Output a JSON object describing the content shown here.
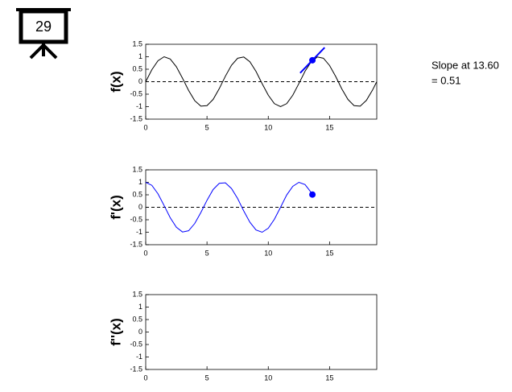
{
  "badge": "29",
  "annotation": [
    "Slope at 13.60",
    "= 0.51"
  ],
  "chart_data": [
    {
      "type": "line",
      "ylabel": "f(x)",
      "xlim": [
        0,
        18.85
      ],
      "ylim": [
        -1.5,
        1.5
      ],
      "xticks": [
        0,
        5,
        10,
        15
      ],
      "yticks": [
        -1.5,
        -1,
        -0.5,
        0,
        0.5,
        1,
        1.5
      ],
      "hline": 0,
      "series": [
        {
          "color": "#000000",
          "x": [
            0,
            0.5,
            1,
            1.5,
            2,
            2.5,
            3,
            3.5,
            4,
            4.5,
            5,
            5.5,
            6,
            6.5,
            7,
            7.5,
            8,
            8.5,
            9,
            9.5,
            10,
            10.5,
            11,
            11.5,
            12,
            12.5,
            13,
            13.5,
            14,
            14.5,
            15,
            15.5,
            16,
            16.5,
            17,
            17.5,
            18,
            18.5,
            18.85
          ],
          "values": [
            0,
            0.48,
            0.84,
            1.0,
            0.91,
            0.6,
            0.14,
            -0.35,
            -0.76,
            -0.98,
            -0.96,
            -0.71,
            -0.28,
            0.22,
            0.66,
            0.94,
            0.99,
            0.8,
            0.41,
            -0.08,
            -0.54,
            -0.88,
            -1.0,
            -0.88,
            -0.54,
            -0.07,
            0.42,
            0.8,
            0.99,
            0.94,
            0.65,
            0.21,
            -0.29,
            -0.71,
            -0.96,
            -0.98,
            -0.75,
            -0.34,
            0
          ]
        },
        {
          "color": "#0000ff",
          "x": [
            12.6,
            14.6
          ],
          "values": [
            0.35,
            1.37
          ]
        },
        {
          "color": "#0000ff",
          "marker": true,
          "x": [
            13.6
          ],
          "values": [
            0.86
          ]
        }
      ]
    },
    {
      "type": "line",
      "ylabel": "f'(x)",
      "xlim": [
        0,
        18.85
      ],
      "ylim": [
        -1.5,
        1.5
      ],
      "xticks": [
        0,
        5,
        10,
        15
      ],
      "yticks": [
        -1.5,
        -1,
        -0.5,
        0,
        0.5,
        1,
        1.5
      ],
      "hline": 0,
      "series": [
        {
          "color": "#0000ff",
          "x": [
            0,
            0.5,
            1,
            1.5,
            2,
            2.5,
            3,
            3.5,
            4,
            4.5,
            5,
            5.5,
            6,
            6.5,
            7,
            7.5,
            8,
            8.5,
            9,
            9.5,
            10,
            10.5,
            11,
            11.5,
            12,
            12.5,
            13,
            13.5,
            13.6
          ],
          "values": [
            1,
            0.88,
            0.54,
            0.07,
            -0.42,
            -0.8,
            -0.99,
            -0.94,
            -0.65,
            -0.21,
            0.28,
            0.71,
            0.96,
            0.98,
            0.75,
            0.35,
            -0.15,
            -0.6,
            -0.91,
            -1.0,
            -0.84,
            -0.48,
            0.0,
            0.49,
            0.84,
            1.0,
            0.91,
            0.59,
            0.51
          ]
        },
        {
          "color": "#0000ff",
          "marker": true,
          "x": [
            13.6
          ],
          "values": [
            0.51
          ]
        }
      ]
    },
    {
      "type": "line",
      "ylabel": "f''(x)",
      "xlim": [
        0,
        18.85
      ],
      "ylim": [
        -1.5,
        1.5
      ],
      "xticks": [
        0,
        5,
        10,
        15
      ],
      "yticks": [
        -1.5,
        -1,
        -0.5,
        0,
        0.5,
        1,
        1.5
      ],
      "series": []
    }
  ]
}
